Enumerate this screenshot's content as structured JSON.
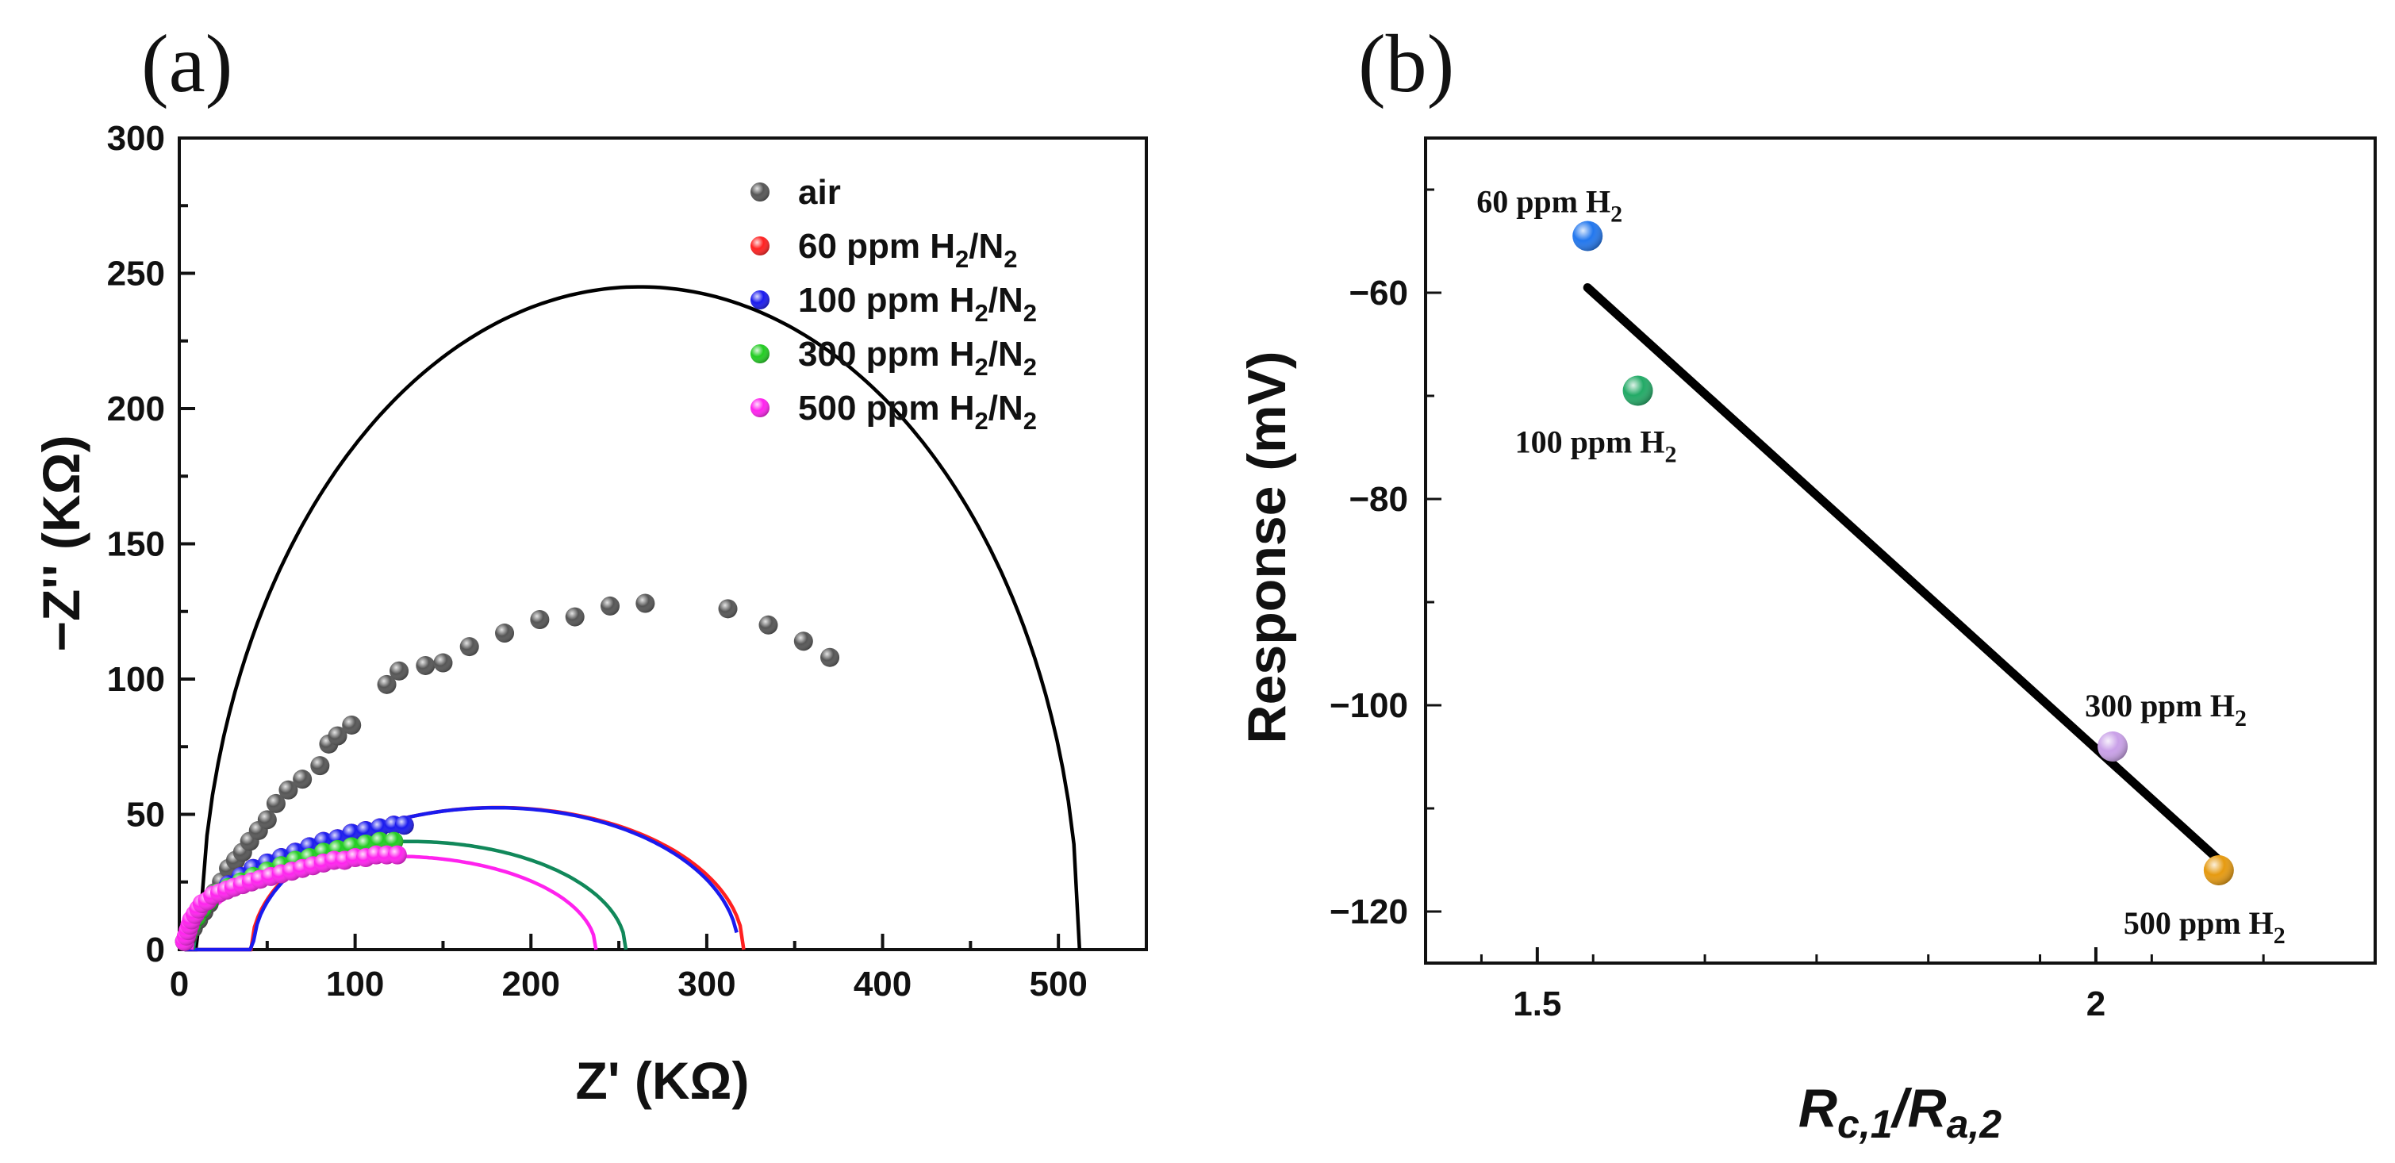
{
  "chart_data": [
    {
      "type": "scatter",
      "panel_label": "(a)",
      "xlabel": "Z' (KΩ)",
      "ylabel": "−Z'' (KΩ)",
      "xlim": [
        0,
        550
      ],
      "ylim": [
        0,
        300
      ],
      "xticks": [
        0,
        100,
        200,
        300,
        400,
        500
      ],
      "yticks": [
        0,
        50,
        100,
        150,
        200,
        250,
        300
      ],
      "legend_position": "top-right",
      "series": [
        {
          "name": "air",
          "label_parts": {
            "prefix": "air",
            "sub1": "",
            "mid": "",
            "sub2": ""
          },
          "color": "#555555",
          "points": [
            [
              5,
              5
            ],
            [
              8,
              8
            ],
            [
              11,
              11
            ],
            [
              14,
              14
            ],
            [
              17,
              17
            ],
            [
              20,
              21
            ],
            [
              24,
              25
            ],
            [
              28,
              30
            ],
            [
              32,
              33
            ],
            [
              36,
              36
            ],
            [
              40,
              40
            ],
            [
              45,
              44
            ],
            [
              50,
              48
            ],
            [
              55,
              54
            ],
            [
              62,
              59
            ],
            [
              70,
              63
            ],
            [
              80,
              68
            ],
            [
              85,
              76
            ],
            [
              90,
              79
            ],
            [
              98,
              83
            ],
            [
              118,
              98
            ],
            [
              125,
              103
            ],
            [
              140,
              105
            ],
            [
              150,
              106
            ],
            [
              165,
              112
            ],
            [
              185,
              117
            ],
            [
              205,
              122
            ],
            [
              225,
              123
            ],
            [
              245,
              127
            ],
            [
              265,
              128
            ],
            [
              312,
              126
            ],
            [
              335,
              120
            ],
            [
              355,
              114
            ],
            [
              370,
              108
            ]
          ],
          "fit": {
            "cx": 262,
            "r": 250,
            "depression": 0.98,
            "x_start": 3,
            "x_end": 512
          }
        },
        {
          "name": "60 ppm H2/N2",
          "label_parts": {
            "prefix": "60 ppm H",
            "sub1": "2",
            "mid": "/N",
            "sub2": "2"
          },
          "color": "#ff2020",
          "points": [
            [
              3,
              3
            ],
            [
              5,
              6
            ],
            [
              7,
              9
            ],
            [
              10,
              12
            ],
            [
              13,
              15
            ],
            [
              17,
              18
            ],
            [
              22,
              21
            ],
            [
              28,
              24
            ],
            [
              35,
              27
            ],
            [
              42,
              30
            ],
            [
              50,
              32
            ],
            [
              58,
              34
            ],
            [
              66,
              36
            ],
            [
              74,
              38
            ],
            [
              82,
              40
            ],
            [
              90,
              41
            ],
            [
              98,
              43
            ],
            [
              106,
              44
            ],
            [
              114,
              45
            ],
            [
              122,
              46
            ],
            [
              128,
              46
            ]
          ],
          "fit": {
            "cx": 181,
            "r": 140,
            "depression": 0.375,
            "x_start": 3,
            "x_end": 321
          }
        },
        {
          "name": "100 ppm H2/N2",
          "label_parts": {
            "prefix": "100 ppm H",
            "sub1": "2",
            "mid": "/N",
            "sub2": "2"
          },
          "color": "#1a1aee",
          "points": [
            [
              3,
              3
            ],
            [
              5,
              6
            ],
            [
              7,
              9
            ],
            [
              10,
              12
            ],
            [
              13,
              15
            ],
            [
              17,
              18
            ],
            [
              22,
              21
            ],
            [
              28,
              24
            ],
            [
              35,
              27
            ],
            [
              42,
              30
            ],
            [
              50,
              32
            ],
            [
              58,
              34
            ],
            [
              66,
              36
            ],
            [
              74,
              38
            ],
            [
              82,
              40
            ],
            [
              90,
              41
            ],
            [
              98,
              43
            ],
            [
              106,
              44
            ],
            [
              114,
              45
            ],
            [
              122,
              46
            ],
            [
              128,
              46
            ]
          ],
          "fit": {
            "cx": 180,
            "r": 138,
            "depression": 0.38,
            "x_start": 3,
            "x_end": 317
          }
        },
        {
          "name": "300 ppm H2/N2",
          "label_parts": {
            "prefix": "300 ppm H",
            "sub1": "2",
            "mid": "/N",
            "sub2": "2"
          },
          "color": "#22cc22",
          "points": [
            [
              3,
              3
            ],
            [
              5,
              6
            ],
            [
              7,
              9
            ],
            [
              10,
              12
            ],
            [
              13,
              15
            ],
            [
              17,
              18
            ],
            [
              22,
              21
            ],
            [
              28,
              23
            ],
            [
              35,
              25
            ],
            [
              42,
              27
            ],
            [
              50,
              29
            ],
            [
              58,
              31
            ],
            [
              66,
              33
            ],
            [
              74,
              34
            ],
            [
              82,
              36
            ],
            [
              90,
              37
            ],
            [
              98,
              38
            ],
            [
              106,
              39
            ],
            [
              114,
              40
            ],
            [
              122,
              40
            ]
          ],
          "fit": {
            "cx": 131,
            "r": 123,
            "depression": 0.325,
            "x_start": 8,
            "x_end": 254
          }
        },
        {
          "name": "500 ppm H2/N2",
          "label_parts": {
            "prefix": "500 ppm H",
            "sub1": "2",
            "mid": "/N",
            "sub2": "2"
          },
          "color": "#ff22ee",
          "points": [
            [
              3,
              3
            ],
            [
              4,
              5
            ],
            [
              5,
              7
            ],
            [
              6,
              9
            ],
            [
              7,
              11
            ],
            [
              9,
              13
            ],
            [
              11,
              15
            ],
            [
              13,
              17
            ],
            [
              16,
              18
            ],
            [
              19,
              20
            ],
            [
              23,
              21
            ],
            [
              27,
              22
            ],
            [
              31,
              23
            ],
            [
              36,
              24
            ],
            [
              41,
              25
            ],
            [
              46,
              26
            ],
            [
              52,
              27
            ],
            [
              58,
              28
            ],
            [
              64,
              29
            ],
            [
              70,
              30
            ],
            [
              76,
              31
            ],
            [
              82,
              32
            ],
            [
              88,
              33
            ],
            [
              94,
              33
            ],
            [
              100,
              34
            ],
            [
              106,
              34
            ],
            [
              112,
              35
            ],
            [
              118,
              35
            ],
            [
              124,
              35
            ]
          ],
          "fit": {
            "cx": 122,
            "r": 115,
            "depression": 0.3,
            "x_start": 7,
            "x_end": 237
          }
        }
      ]
    },
    {
      "type": "scatter",
      "panel_label": "(b)",
      "xlabel": "Rc,1/Ra,2",
      "xlabel_parts": {
        "a": "R",
        "a_sub": "c,1",
        "sep": "/",
        "b": "R",
        "b_sub": "a,2"
      },
      "ylabel": "Response (mV)",
      "xlim": [
        1.4,
        2.25
      ],
      "ylim": [
        -125,
        -45
      ],
      "xticks": [
        1.5,
        2
      ],
      "xtick_labels": [
        "1.5",
        "2"
      ],
      "yticks": [
        -60,
        -80,
        -100,
        -120
      ],
      "ytick_labels": [
        "−60",
        "−80",
        "−100",
        "−120"
      ],
      "points": [
        {
          "name": "60 ppm H2",
          "label_prefix": "60 ppm H",
          "label_sub": "2",
          "x": 1.545,
          "y": -54.5,
          "color": "#2277ee",
          "label_pos": "above"
        },
        {
          "name": "100 ppm H2",
          "label_prefix": "100 ppm H",
          "label_sub": "2",
          "x": 1.59,
          "y": -69.5,
          "color": "#22aa66",
          "label_pos": "below"
        },
        {
          "name": "300 ppm H2",
          "label_prefix": "300 ppm H",
          "label_sub": "2",
          "x": 2.015,
          "y": -104,
          "color": "#c9a0e8",
          "label_pos": "above"
        },
        {
          "name": "500 ppm H2",
          "label_prefix": "500 ppm H",
          "label_sub": "2",
          "x": 2.11,
          "y": -116,
          "color": "#e69a10",
          "label_pos": "below"
        }
      ],
      "fit_line": {
        "x1": 1.545,
        "y1": -59.5,
        "x2": 2.11,
        "y2": -115
      }
    }
  ]
}
